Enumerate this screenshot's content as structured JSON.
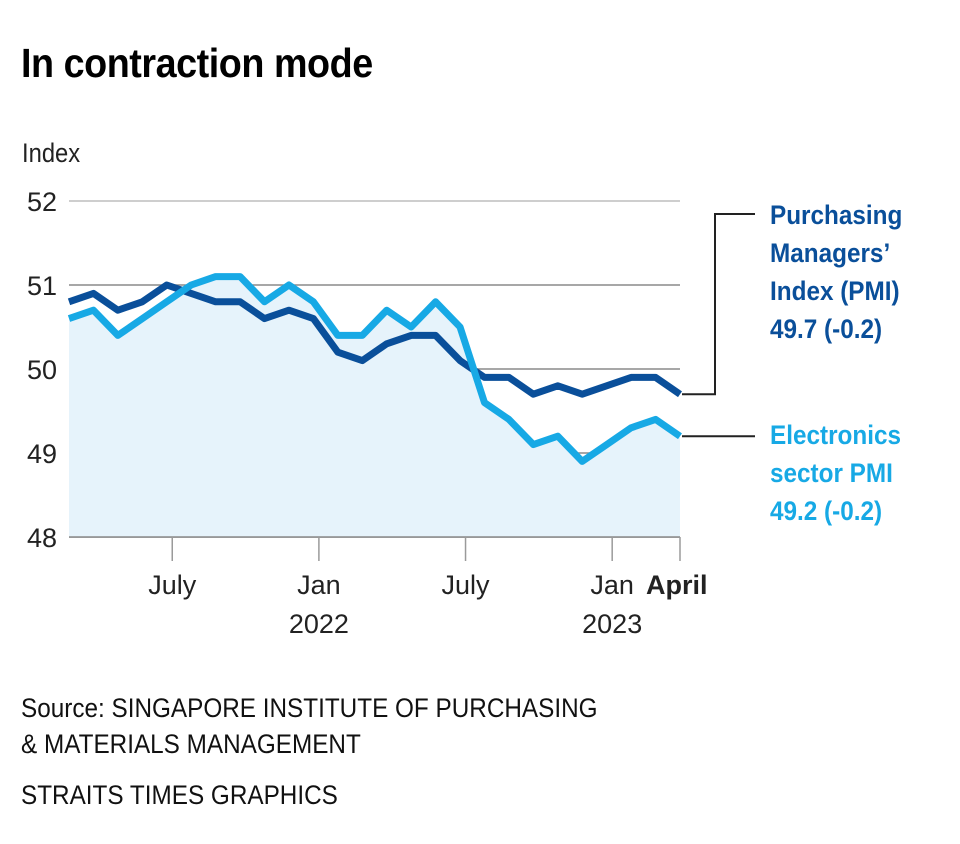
{
  "header": {
    "title": "In contraction mode"
  },
  "chart_data": {
    "type": "line",
    "title": "In contraction mode",
    "ylabel": "Index",
    "xlabel": "",
    "ylim": [
      48,
      52
    ],
    "yticks": [
      "52",
      "51",
      "50",
      "49",
      "48"
    ],
    "grid": true,
    "area_fill_below": "Electronics sector PMI",
    "x": [
      "Mar 2021",
      "Apr 2021",
      "May 2021",
      "Jun 2021",
      "Jul 2021",
      "Aug 2021",
      "Sep 2021",
      "Oct 2021",
      "Nov 2021",
      "Dec 2021",
      "Jan 2022",
      "Feb 2022",
      "Mar 2022",
      "Apr 2022",
      "May 2022",
      "Jun 2022",
      "Jul 2022",
      "Aug 2022",
      "Sep 2022",
      "Oct 2022",
      "Nov 2022",
      "Dec 2022",
      "Jan 2023",
      "Feb 2023",
      "Mar 2023",
      "Apr 2023"
    ],
    "xticks": [
      {
        "month": "Jul 2021",
        "label": "July",
        "sublabel": ""
      },
      {
        "month": "Jan 2022",
        "label": "Jan",
        "sublabel": "2022"
      },
      {
        "month": "Jul 2022",
        "label": "July",
        "sublabel": ""
      },
      {
        "month": "Jan 2023",
        "label": "Jan",
        "sublabel": "2023"
      },
      {
        "month": "Apr 2023",
        "label": "April",
        "sublabel": "",
        "bold": true
      }
    ],
    "series": [
      {
        "name": "Purchasing Managers' Index (PMI)",
        "color": "#0a4f9a",
        "values": [
          50.8,
          50.9,
          50.7,
          50.8,
          51.0,
          50.9,
          50.8,
          50.8,
          50.6,
          50.7,
          50.6,
          50.2,
          50.1,
          50.3,
          50.4,
          50.4,
          50.1,
          49.9,
          49.9,
          49.7,
          49.8,
          49.7,
          49.8,
          49.9,
          49.9,
          49.7
        ]
      },
      {
        "name": "Electronics sector PMI",
        "color": "#17a9e5",
        "values": [
          50.6,
          50.7,
          50.4,
          50.6,
          50.8,
          51.0,
          51.1,
          51.1,
          50.8,
          51.0,
          50.8,
          50.4,
          50.4,
          50.7,
          50.5,
          50.8,
          50.5,
          49.6,
          49.4,
          49.1,
          49.2,
          48.9,
          49.1,
          49.3,
          49.4,
          49.2
        ]
      }
    ],
    "fill_color": "#e6f3fb"
  },
  "legend": {
    "pmi": {
      "lines": [
        "Purchasing",
        "Managers’",
        "Index (PMI)",
        "49.7 (-0.2)"
      ],
      "color": "#0a4f9a"
    },
    "electronics": {
      "lines": [
        "Electronics",
        "sector PMI",
        "49.2 (-0.2)"
      ],
      "color": "#17a9e5"
    }
  },
  "footer": {
    "source_line1": "Source: SINGAPORE INSTITUTE OF PURCHASING",
    "source_line2": "& MATERIALS MANAGEMENT",
    "credit": "STRAITS TIMES GRAPHICS"
  }
}
